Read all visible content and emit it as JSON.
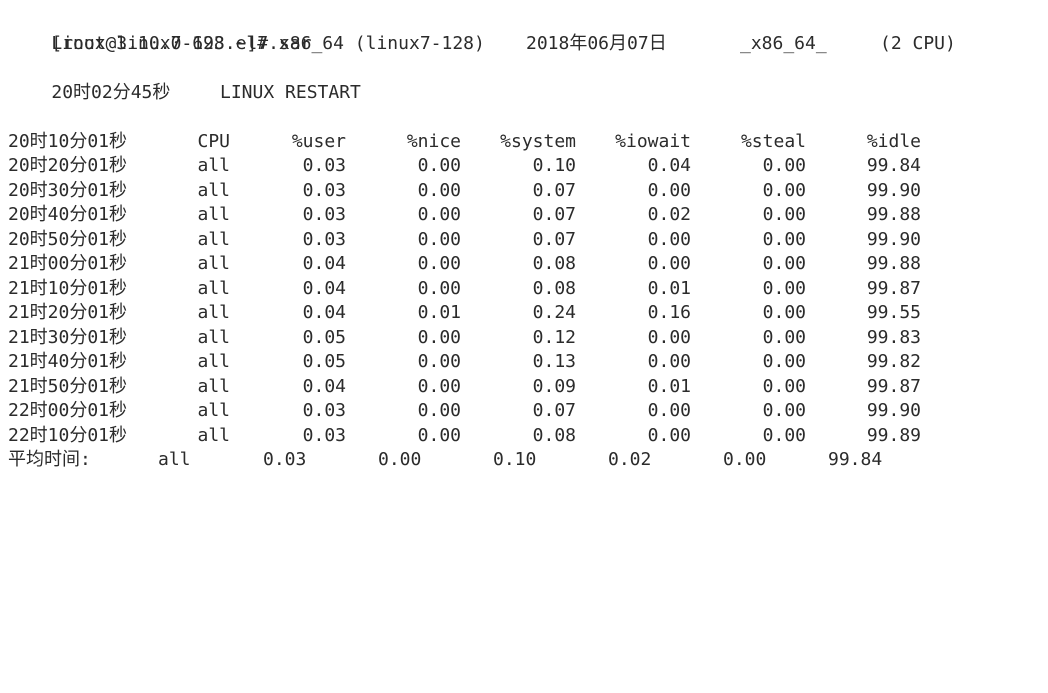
{
  "prompt": "[root@linux7-128 ~]# sar",
  "header": {
    "kernel": "Linux 3.10.0-693.el7.x86_64 (linux7-128)",
    "date": "2018年06月07日",
    "arch": "_x86_64_",
    "cpus": "(2 CPU)"
  },
  "restart": {
    "time": "20时02分45秒",
    "label": "LINUX RESTART"
  },
  "columns": {
    "time": "20时10分01秒",
    "cpu": "CPU",
    "user": "%user",
    "nice": "%nice",
    "system": "%system",
    "iowait": "%iowait",
    "steal": "%steal",
    "idle": "%idle"
  },
  "rows": [
    {
      "time": "20时20分01秒",
      "cpu": "all",
      "user": "0.03",
      "nice": "0.00",
      "system": "0.10",
      "iowait": "0.04",
      "steal": "0.00",
      "idle": "99.84"
    },
    {
      "time": "20时30分01秒",
      "cpu": "all",
      "user": "0.03",
      "nice": "0.00",
      "system": "0.07",
      "iowait": "0.00",
      "steal": "0.00",
      "idle": "99.90"
    },
    {
      "time": "20时40分01秒",
      "cpu": "all",
      "user": "0.03",
      "nice": "0.00",
      "system": "0.07",
      "iowait": "0.02",
      "steal": "0.00",
      "idle": "99.88"
    },
    {
      "time": "20时50分01秒",
      "cpu": "all",
      "user": "0.03",
      "nice": "0.00",
      "system": "0.07",
      "iowait": "0.00",
      "steal": "0.00",
      "idle": "99.90"
    },
    {
      "time": "21时00分01秒",
      "cpu": "all",
      "user": "0.04",
      "nice": "0.00",
      "system": "0.08",
      "iowait": "0.00",
      "steal": "0.00",
      "idle": "99.88"
    },
    {
      "time": "21时10分01秒",
      "cpu": "all",
      "user": "0.04",
      "nice": "0.00",
      "system": "0.08",
      "iowait": "0.01",
      "steal": "0.00",
      "idle": "99.87"
    },
    {
      "time": "21时20分01秒",
      "cpu": "all",
      "user": "0.04",
      "nice": "0.01",
      "system": "0.24",
      "iowait": "0.16",
      "steal": "0.00",
      "idle": "99.55"
    },
    {
      "time": "21时30分01秒",
      "cpu": "all",
      "user": "0.05",
      "nice": "0.00",
      "system": "0.12",
      "iowait": "0.00",
      "steal": "0.00",
      "idle": "99.83"
    },
    {
      "time": "21时40分01秒",
      "cpu": "all",
      "user": "0.05",
      "nice": "0.00",
      "system": "0.13",
      "iowait": "0.00",
      "steal": "0.00",
      "idle": "99.82"
    },
    {
      "time": "21时50分01秒",
      "cpu": "all",
      "user": "0.04",
      "nice": "0.00",
      "system": "0.09",
      "iowait": "0.01",
      "steal": "0.00",
      "idle": "99.87"
    },
    {
      "time": "22时00分01秒",
      "cpu": "all",
      "user": "0.03",
      "nice": "0.00",
      "system": "0.07",
      "iowait": "0.00",
      "steal": "0.00",
      "idle": "99.90"
    },
    {
      "time": "22时10分01秒",
      "cpu": "all",
      "user": "0.03",
      "nice": "0.00",
      "system": "0.08",
      "iowait": "0.00",
      "steal": "0.00",
      "idle": "99.89"
    }
  ],
  "average": {
    "label": "平均时间:",
    "cpu": "all",
    "user": "0.03",
    "nice": "0.00",
    "system": "0.10",
    "iowait": "0.02",
    "steal": "0.00",
    "idle": "99.84"
  }
}
